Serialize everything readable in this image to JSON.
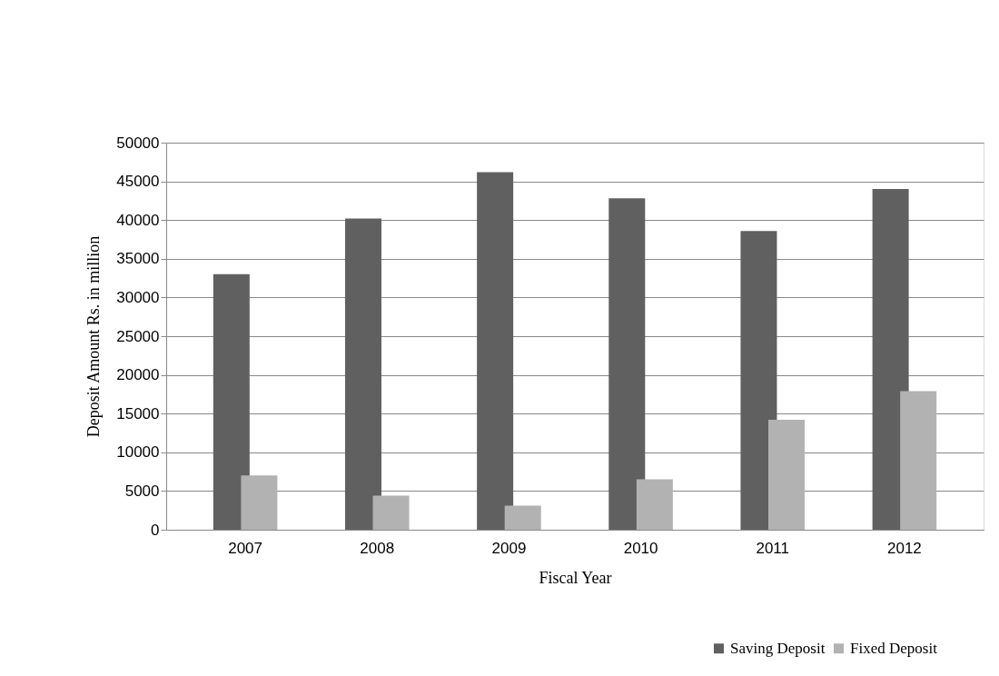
{
  "chart_data": {
    "type": "bar",
    "xlabel": "Fiscal Year",
    "ylabel": "Deposit Amount Rs. in million",
    "categories": [
      "2007",
      "2008",
      "2009",
      "2010",
      "2011",
      "2012"
    ],
    "series": [
      {
        "name": "Saving Deposit",
        "color": "#606060",
        "values": [
          33000,
          40200,
          46200,
          42800,
          38600,
          44000
        ]
      },
      {
        "name": "Fixed Deposit",
        "color": "#b2b2b2",
        "values": [
          7000,
          4400,
          3100,
          6500,
          14200,
          17900
        ]
      }
    ],
    "ylim": [
      0,
      50000
    ],
    "yticks": [
      0,
      5000,
      10000,
      15000,
      20000,
      25000,
      30000,
      35000,
      40000,
      45000,
      50000
    ],
    "grid": "y",
    "legend": "bottom right"
  }
}
